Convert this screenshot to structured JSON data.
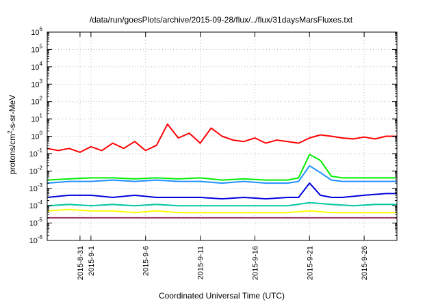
{
  "chart_data": {
    "type": "line",
    "title": "/data/run/goesPlots/archive/2015-09-28/flux/../flux/31daysMarsFluxes.txt",
    "xlabel": "Coordinated Universal Time (UTC)",
    "ylabel": "protons/cm^2-s-sr-MeV",
    "ylabel_parts": [
      "protons/cm",
      "2",
      "-s-sr-MeV"
    ],
    "yscale": "log",
    "ylim_exp": [
      -6,
      6
    ],
    "y_tick_base": "10",
    "y_tick_exponents": [
      "-6",
      "-5",
      "-4",
      "-3",
      "-2",
      "-1",
      "0",
      "1",
      "2",
      "3",
      "4",
      "5",
      "6"
    ],
    "x_start": "2015-08-28",
    "x_end": "2015-09-29",
    "x_ticks": [
      {
        "date": "2015-08-31",
        "label": "2015-8-31"
      },
      {
        "date": "2015-09-01",
        "label": "2015-9-1"
      },
      {
        "date": "2015-09-06",
        "label": "2015-9-6"
      },
      {
        "date": "2015-09-11",
        "label": "2015-9-11"
      },
      {
        "date": "2015-09-16",
        "label": "2015-9-16"
      },
      {
        "date": "2015-09-21",
        "label": "2015-9-21"
      },
      {
        "date": "2015-09-26",
        "label": "2015-9-26"
      }
    ],
    "grid": true,
    "legend": "none",
    "series": [
      {
        "color": "#ff0000",
        "x": [
          "2015-08-28",
          "2015-08-29",
          "2015-08-30",
          "2015-08-31",
          "2015-09-01",
          "2015-09-02",
          "2015-09-03",
          "2015-09-04",
          "2015-09-05",
          "2015-09-06",
          "2015-09-07",
          "2015-09-08",
          "2015-09-09",
          "2015-09-10",
          "2015-09-11",
          "2015-09-12",
          "2015-09-13",
          "2015-09-14",
          "2015-09-15",
          "2015-09-16",
          "2015-09-17",
          "2015-09-18",
          "2015-09-19",
          "2015-09-20",
          "2015-09-21",
          "2015-09-22",
          "2015-09-23",
          "2015-09-24",
          "2015-09-25",
          "2015-09-26",
          "2015-09-27",
          "2015-09-28",
          "2015-09-29"
        ],
        "y": [
          0.2,
          0.15,
          0.2,
          0.12,
          0.25,
          0.15,
          0.4,
          0.2,
          0.5,
          0.15,
          0.3,
          5,
          0.8,
          1.5,
          0.4,
          3,
          1,
          0.6,
          0.5,
          0.8,
          0.4,
          0.6,
          0.5,
          0.4,
          0.8,
          1.2,
          1.0,
          0.8,
          0.7,
          0.9,
          0.7,
          1.0,
          1.0
        ]
      },
      {
        "color": "#00ee00",
        "x": [
          "2015-08-28",
          "2015-08-30",
          "2015-09-01",
          "2015-09-03",
          "2015-09-05",
          "2015-09-07",
          "2015-09-09",
          "2015-09-11",
          "2015-09-13",
          "2015-09-15",
          "2015-09-17",
          "2015-09-19",
          "2015-09-20",
          "2015-09-21",
          "2015-09-22",
          "2015-09-23",
          "2015-09-24",
          "2015-09-26",
          "2015-09-28",
          "2015-09-29"
        ],
        "y": [
          0.003,
          0.0035,
          0.004,
          0.004,
          0.0035,
          0.004,
          0.0035,
          0.004,
          0.003,
          0.0035,
          0.003,
          0.003,
          0.004,
          0.09,
          0.04,
          0.005,
          0.004,
          0.004,
          0.004,
          0.004
        ]
      },
      {
        "color": "#1e90ff",
        "x": [
          "2015-08-28",
          "2015-08-30",
          "2015-09-01",
          "2015-09-03",
          "2015-09-05",
          "2015-09-07",
          "2015-09-09",
          "2015-09-11",
          "2015-09-13",
          "2015-09-15",
          "2015-09-17",
          "2015-09-19",
          "2015-09-20",
          "2015-09-21",
          "2015-09-22",
          "2015-09-23",
          "2015-09-24",
          "2015-09-26",
          "2015-09-28",
          "2015-09-29"
        ],
        "y": [
          0.002,
          0.0025,
          0.0025,
          0.003,
          0.0025,
          0.003,
          0.0025,
          0.0025,
          0.002,
          0.0025,
          0.002,
          0.002,
          0.0025,
          0.02,
          0.008,
          0.003,
          0.0025,
          0.0025,
          0.0025,
          0.0025
        ]
      },
      {
        "color": "#0000dd",
        "x": [
          "2015-08-28",
          "2015-08-30",
          "2015-09-01",
          "2015-09-03",
          "2015-09-05",
          "2015-09-07",
          "2015-09-09",
          "2015-09-11",
          "2015-09-13",
          "2015-09-15",
          "2015-09-17",
          "2015-09-19",
          "2015-09-20",
          "2015-09-21",
          "2015-09-22",
          "2015-09-23",
          "2015-09-24",
          "2015-09-26",
          "2015-09-28",
          "2015-09-29"
        ],
        "y": [
          0.0003,
          0.0004,
          0.0004,
          0.0003,
          0.0004,
          0.0003,
          0.0003,
          0.0003,
          0.00025,
          0.0003,
          0.00025,
          0.0003,
          0.0003,
          0.002,
          0.0004,
          0.0003,
          0.0003,
          0.0004,
          0.0005,
          0.0005
        ]
      },
      {
        "color": "#00c8a0",
        "x": [
          "2015-08-28",
          "2015-08-30",
          "2015-09-01",
          "2015-09-03",
          "2015-09-05",
          "2015-09-07",
          "2015-09-09",
          "2015-09-11",
          "2015-09-13",
          "2015-09-15",
          "2015-09-17",
          "2015-09-19",
          "2015-09-21",
          "2015-09-23",
          "2015-09-25",
          "2015-09-27",
          "2015-09-29"
        ],
        "y": [
          0.0001,
          0.00012,
          0.0001,
          0.00012,
          0.0001,
          0.00012,
          0.0001,
          0.0001,
          0.0001,
          0.0001,
          0.0001,
          0.0001,
          0.00015,
          0.00012,
          0.0001,
          0.00012,
          0.00012
        ]
      },
      {
        "color": "#ffff00",
        "x": [
          "2015-08-28",
          "2015-08-30",
          "2015-09-01",
          "2015-09-03",
          "2015-09-05",
          "2015-09-07",
          "2015-09-09",
          "2015-09-11",
          "2015-09-13",
          "2015-09-15",
          "2015-09-17",
          "2015-09-19",
          "2015-09-21",
          "2015-09-23",
          "2015-09-25",
          "2015-09-27",
          "2015-09-29"
        ],
        "y": [
          5e-05,
          6e-05,
          5e-05,
          5e-05,
          4e-05,
          5e-05,
          4e-05,
          4e-05,
          4e-05,
          4e-05,
          4e-05,
          4e-05,
          5e-05,
          4e-05,
          4e-05,
          4e-05,
          4e-05
        ]
      },
      {
        "color": "#993366",
        "x": [
          "2015-08-28",
          "2015-08-30",
          "2015-09-01",
          "2015-09-03",
          "2015-09-05",
          "2015-09-07",
          "2015-09-09",
          "2015-09-11",
          "2015-09-13",
          "2015-09-15",
          "2015-09-17",
          "2015-09-19",
          "2015-09-21",
          "2015-09-23",
          "2015-09-25",
          "2015-09-27",
          "2015-09-29"
        ],
        "y": [
          2e-05,
          2e-05,
          2e-05,
          2e-05,
          2e-05,
          2e-05,
          2e-05,
          2e-05,
          2e-05,
          2e-05,
          2e-05,
          2e-05,
          2e-05,
          2e-05,
          2e-05,
          2e-05,
          2e-05
        ]
      }
    ]
  }
}
